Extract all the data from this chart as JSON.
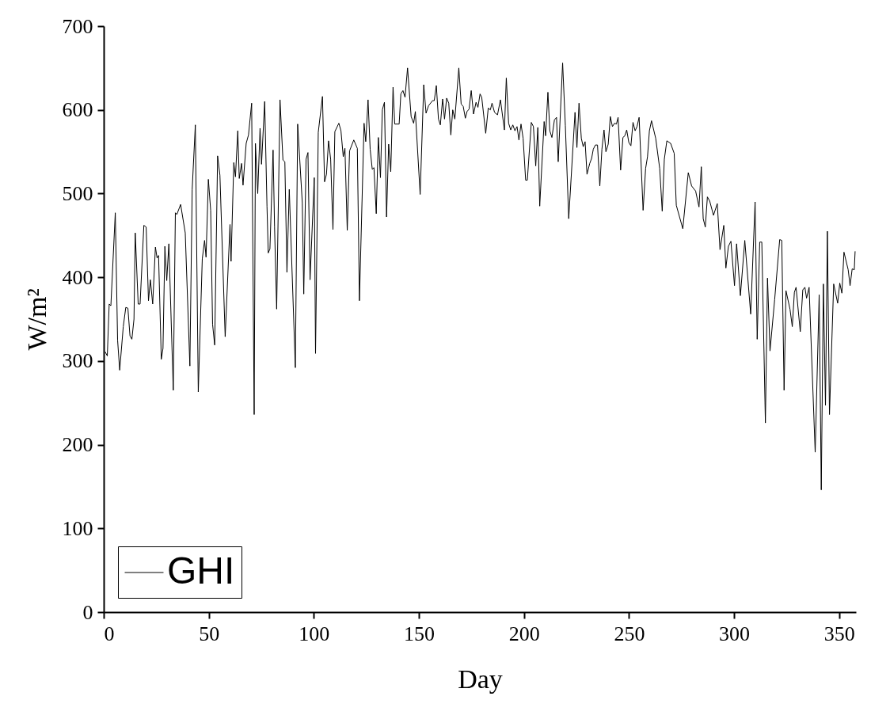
{
  "chart_data": {
    "type": "line",
    "xlabel": "Day",
    "ylabel": "W/m²",
    "xlim": [
      0,
      358
    ],
    "ylim": [
      0,
      700
    ],
    "xticks": [
      0,
      50,
      100,
      150,
      200,
      250,
      300,
      350
    ],
    "yticks": [
      0,
      100,
      200,
      300,
      400,
      500,
      600,
      700
    ],
    "grid": false,
    "legend": "bottom left",
    "series": [
      {
        "name": "GHI",
        "color": "#000000",
        "x": [
          0.7,
          1.7,
          2.6,
          3.4,
          5.5,
          6.6,
          7.6,
          9.3,
          10.5,
          11.5,
          12.5,
          13.4,
          14.4,
          15.0,
          16.4,
          17.3,
          19.1,
          20.2,
          21.3,
          22.2,
          23.3,
          24.6,
          25.4,
          26.1,
          27.4,
          28.2,
          29.1,
          30,
          31,
          33.1,
          34.1,
          34.8,
          36.6,
          38.8,
          41,
          42.1,
          43.6,
          45,
          46.9,
          48,
          48.7,
          49.8,
          50.9,
          51.8,
          52.8,
          54.2,
          55.3,
          57.8,
          60.1,
          60.6,
          61.9,
          62.7,
          63.8,
          64.5,
          65.6,
          66.3,
          67.8,
          68.9,
          70.4,
          71.6,
          72.2,
          73.3,
          74.4,
          75.1,
          76.6,
          77.7,
          78.3,
          79.1,
          80.6,
          81.3,
          82.3,
          83.9,
          85.3,
          86.2,
          87.2,
          88.3,
          91.2,
          92.3,
          94.5,
          95.2,
          96.3,
          97.2,
          98.2,
          100.2,
          100.8,
          102.1,
          104.1,
          105.1,
          106,
          107,
          108,
          109.1,
          110,
          111.9,
          112.9,
          114,
          114.8,
          115.9,
          117,
          119,
          120.7,
          121.7,
          123.9,
          124.7,
          125.8,
          126.8,
          127.8,
          128.6,
          129.7,
          130.7,
          131.7,
          132.6,
          133.6,
          134.6,
          135.6,
          136.6,
          137.7,
          138.5,
          140.6,
          141.4,
          142.4,
          143.4,
          144.6,
          146.3,
          147.5,
          148.3,
          150.6,
          152.3,
          153.4,
          154.6,
          156.5,
          157.3,
          158.3,
          159.3,
          160.2,
          161.3,
          162.2,
          163.2,
          164.2,
          165.2,
          166.1,
          167.1,
          169,
          170.1,
          171.1,
          172.1,
          172.9,
          173.9,
          174.9,
          176,
          177.2,
          178.1,
          179.1,
          179.9,
          181.8,
          183,
          184,
          184.8,
          186,
          187.4,
          188.8,
          190.7,
          191.6,
          192.7,
          193.7,
          194.7,
          195.7,
          196.7,
          197.6,
          198.6,
          199.6,
          200.8,
          201.6,
          203.5,
          204.5,
          205.6,
          206.6,
          207.5,
          209.6,
          210.3,
          211.4,
          212.3,
          213.3,
          214.5,
          215.5,
          216.3,
          218.4,
          219.7,
          221.3,
          224.3,
          225.2,
          226.2,
          227.3,
          228.2,
          229.1,
          230,
          231.3,
          232.2,
          233,
          234,
          235,
          236.1,
          237.1,
          238.1,
          239,
          240.1,
          241.1,
          242.1,
          243.1,
          244,
          244.8,
          246,
          247.1,
          248,
          248.9,
          249.9,
          250.9,
          251.9,
          252.9,
          253.8,
          254.8,
          256.7,
          257.9,
          258.8,
          259.7,
          260.7,
          262.7,
          264.6,
          265.8,
          266.8,
          268,
          269.8,
          271.5,
          272.5,
          275.6,
          278.2,
          279.8,
          281.7,
          283.3,
          284.4,
          285.3,
          286.3,
          287.3,
          288.4,
          290.2,
          292,
          293.3,
          295.1,
          296.1,
          297.3,
          298.5,
          300.2,
          301.2,
          303,
          305.1,
          307.9,
          310,
          311,
          312.2,
          313.2,
          314.9,
          315.9,
          317.1,
          319.3,
          321.7,
          322.7,
          323.8,
          324.7,
          326.6,
          327.7,
          328.7,
          329.5,
          331.5,
          332.7,
          333.7,
          334.5,
          335.7,
          338.6,
          340.5,
          341.5,
          342.5,
          343.5,
          344.4,
          345.4,
          347.4,
          349.3,
          350.3,
          351.3,
          352.3,
          354.3,
          355.2,
          356.2,
          357.2,
          357.6
        ],
        "values": [
          311,
          306,
          368,
          366,
          477,
          325,
          289,
          341,
          364,
          363,
          330,
          326,
          350,
          453,
          368,
          368,
          462,
          460,
          372,
          397,
          368,
          436,
          423,
          426,
          302,
          315,
          437,
          396,
          440,
          265,
          477,
          475,
          487,
          453,
          294,
          505,
          582,
          263,
          422,
          444,
          424,
          517,
          480,
          344,
          319,
          545,
          522,
          329,
          463,
          419,
          537,
          520,
          575,
          518,
          536,
          510,
          560,
          570,
          608,
          236,
          560,
          500,
          578,
          535,
          610,
          485,
          429,
          434,
          552,
          460,
          362,
          612,
          540,
          538,
          406,
          505,
          292,
          583,
          489,
          380,
          541,
          549,
          397,
          519,
          309,
          573,
          616,
          514,
          523,
          563,
          541,
          457,
          574,
          584,
          575,
          544,
          554,
          456,
          551,
          564,
          554,
          372,
          584,
          562,
          612,
          553,
          529,
          531,
          476,
          567,
          519,
          600,
          609,
          472,
          559,
          526,
          627,
          583,
          583,
          619,
          623,
          615,
          650,
          592,
          584,
          598,
          499,
          630,
          596,
          605,
          611,
          611,
          629,
          589,
          582,
          613,
          589,
          614,
          608,
          570,
          600,
          589,
          650,
          607,
          604,
          590,
          598,
          601,
          623,
          595,
          609,
          603,
          619,
          615,
          572,
          602,
          600,
          608,
          597,
          594,
          612,
          576,
          638,
          584,
          576,
          582,
          575,
          580,
          564,
          583,
          566,
          516,
          516,
          585,
          580,
          533,
          579,
          485,
          586,
          569,
          621,
          575,
          567,
          588,
          591,
          538,
          656,
          581,
          470,
          597,
          555,
          608,
          566,
          556,
          562,
          523,
          536,
          542,
          553,
          558,
          558,
          509,
          553,
          576,
          550,
          559,
          592,
          580,
          584,
          583,
          591,
          528,
          567,
          569,
          576,
          561,
          557,
          585,
          575,
          580,
          591,
          480,
          530,
          544,
          575,
          587,
          566,
          530,
          479,
          541,
          563,
          560,
          548,
          486,
          458,
          525,
          509,
          503,
          484,
          532,
          470,
          460,
          496,
          491,
          474,
          488,
          433,
          462,
          411,
          437,
          443,
          390,
          440,
          378,
          444,
          356,
          490,
          326,
          442,
          442,
          226,
          399,
          312,
          373,
          445,
          444,
          265,
          384,
          362,
          341,
          382,
          388,
          335,
          385,
          388,
          375,
          388,
          191,
          379,
          146,
          392,
          247,
          455,
          236,
          392,
          369,
          393,
          381,
          430,
          409,
          390,
          410,
          409,
          431
        ]
      }
    ]
  }
}
